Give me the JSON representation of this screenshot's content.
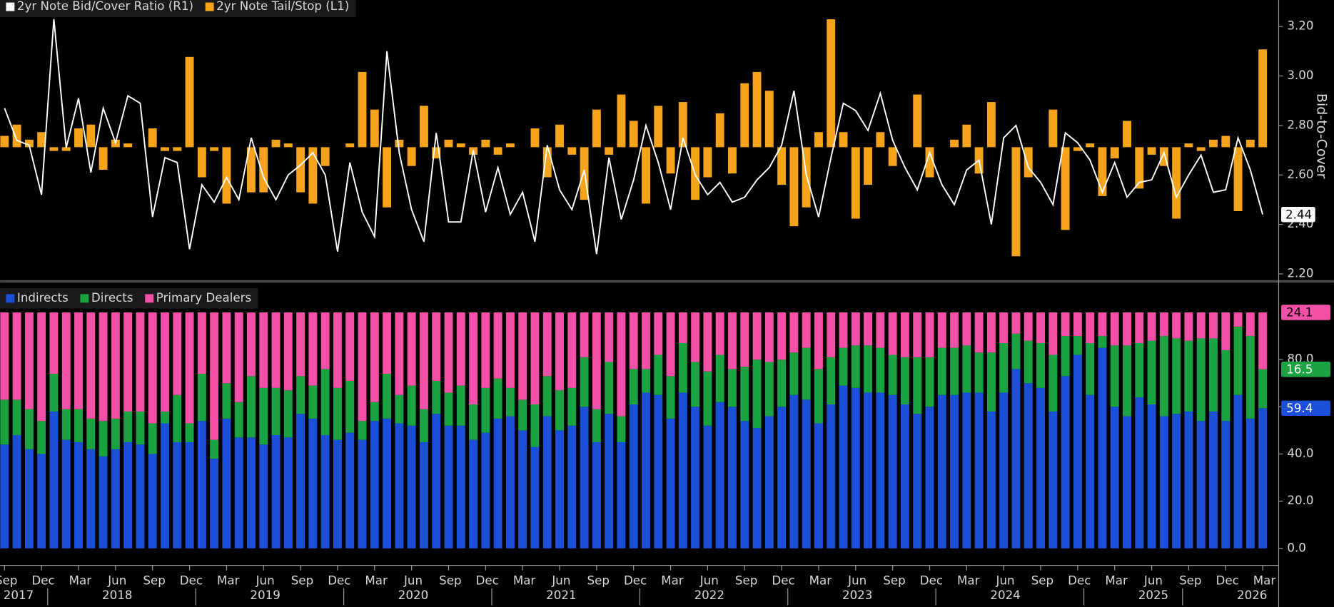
{
  "chart_data": [
    {
      "type": "combo",
      "series": [
        {
          "name": "2yr Note Bid/Cover Ratio (R1)",
          "color": "#ffffff",
          "type": "line",
          "axis": "y2",
          "values": [
            2.87,
            2.74,
            2.72,
            2.52,
            3.23,
            2.71,
            2.91,
            2.61,
            2.87,
            2.73,
            2.92,
            2.89,
            2.43,
            2.67,
            2.65,
            2.3,
            2.56,
            2.49,
            2.59,
            2.5,
            2.75,
            2.59,
            2.5,
            2.6,
            2.64,
            2.69,
            2.6,
            2.29,
            2.65,
            2.45,
            2.35,
            3.1,
            2.69,
            2.46,
            2.33,
            2.77,
            2.41,
            2.41,
            2.7,
            2.45,
            2.63,
            2.44,
            2.53,
            2.33,
            2.72,
            2.54,
            2.46,
            2.62,
            2.28,
            2.67,
            2.42,
            2.58,
            2.8,
            2.65,
            2.46,
            2.75,
            2.6,
            2.52,
            2.57,
            2.49,
            2.51,
            2.58,
            2.63,
            2.72,
            2.94,
            2.6,
            2.43,
            2.67,
            2.89,
            2.86,
            2.78,
            2.93,
            2.74,
            2.63,
            2.54,
            2.69,
            2.56,
            2.48,
            2.62,
            2.66,
            2.4,
            2.75,
            2.8,
            2.63,
            2.57,
            2.48,
            2.77,
            2.73,
            2.66,
            2.53,
            2.65,
            2.51,
            2.57,
            2.58,
            2.69,
            2.51,
            2.6,
            2.68,
            2.53,
            2.54,
            2.75,
            2.62,
            2.44
          ]
        },
        {
          "name": "2yr Note Tail/Stop (L1)",
          "color": "#f5a31a",
          "type": "bar",
          "values": [
            0.3,
            0.6,
            0.2,
            0.4,
            -0.1,
            -0.1,
            0.5,
            0.6,
            -0.6,
            0.2,
            0.1,
            0,
            0.5,
            -0.1,
            -0.1,
            2.4,
            -0.8,
            -0.1,
            -1.5,
            0,
            -1.2,
            -1.2,
            0.2,
            0.1,
            -1.2,
            -1.5,
            -0.5,
            0,
            0.1,
            2.0,
            1.0,
            -1.6,
            0.2,
            -0.5,
            1.1,
            -0.3,
            0.2,
            0.1,
            -0.2,
            0.2,
            -0.2,
            0.1,
            0.0,
            0.5,
            -0.8,
            0.6,
            -0.2,
            -1.4,
            1.0,
            -0.2,
            1.4,
            0.7,
            -1.5,
            1.1,
            -0.7,
            1.2,
            -1.4,
            -0.8,
            0.9,
            -0.7,
            1.7,
            2.0,
            1.5,
            -1.0,
            -2.1,
            -1.6,
            0.4,
            3.4,
            0.4,
            -1.9,
            -1.0,
            0.4,
            -0.5,
            0,
            1.4,
            -0.8,
            0,
            0.2,
            0.6,
            -0.7,
            1.2,
            0,
            -2.9,
            -0.8,
            0,
            1.0,
            -2.2,
            -0.1,
            0.1,
            -1.3,
            -0.3,
            0.7,
            -1.1,
            -0.2,
            -0.5,
            -1.9,
            0.1,
            -0.1,
            0.2,
            0.3,
            -1.7,
            0.2,
            2.6
          ]
        }
      ],
      "ylim": [
        -3.5,
        3.8
      ],
      "y2lim": [
        2.18,
        3.29
      ],
      "y2ticks": [
        {
          "value": 2.2,
          "label": "2.20"
        },
        {
          "value": 2.4,
          "label": "2.40"
        },
        {
          "value": 2.6,
          "label": "2.60"
        },
        {
          "value": 2.8,
          "label": "2.80"
        },
        {
          "value": 3.0,
          "label": "3.00"
        },
        {
          "value": 3.2,
          "label": "3.20"
        }
      ],
      "y2label": "Bid-to-Cover",
      "last_value_label": true
    },
    {
      "type": "stacked-bar",
      "categories": [
        "Sep",
        null,
        null,
        "Dec",
        null,
        null,
        "Mar",
        null,
        null,
        "Jun",
        null,
        null,
        "Sep",
        null,
        null,
        "Dec",
        null,
        null,
        "Mar",
        null,
        null,
        "Jun",
        null,
        null,
        "Sep",
        null,
        null,
        "Dec",
        null,
        null,
        "Mar",
        null,
        null,
        "Jun",
        null,
        null,
        "Sep",
        null,
        null,
        "Dec",
        null,
        null,
        "Mar",
        null,
        null,
        "Jun",
        null,
        null,
        "Sep",
        null,
        null,
        "Dec",
        null,
        null,
        "Mar",
        null,
        null,
        "Jun",
        null,
        null,
        "Sep",
        null,
        null,
        "Dec",
        null,
        null,
        "Mar",
        null,
        null,
        "Jun",
        null,
        null,
        "Sep",
        null,
        null,
        "Dec",
        null,
        null,
        "Mar",
        null,
        null,
        "Jun",
        null,
        null,
        "Sep",
        null,
        null,
        "Dec",
        null,
        null,
        "Mar",
        null,
        null,
        "Jun",
        null,
        null,
        "Sep",
        null,
        null,
        "Dec",
        null,
        null,
        "Mar"
      ],
      "years": [
        null,
        "2017",
        null,
        null,
        null,
        null,
        null,
        null,
        null,
        "2018",
        null,
        null,
        null,
        null,
        null,
        null,
        null,
        null,
        null,
        null,
        null,
        "2019",
        null,
        null,
        null,
        null,
        null,
        null,
        null,
        null,
        null,
        null,
        null,
        "2020",
        null,
        null,
        null,
        null,
        null,
        null,
        null,
        null,
        null,
        null,
        null,
        "2021",
        null,
        null,
        null,
        null,
        null,
        null,
        null,
        null,
        null,
        null,
        null,
        "2022",
        null,
        null,
        null,
        null,
        null,
        null,
        null,
        null,
        null,
        null,
        null,
        "2023",
        null,
        null,
        null,
        null,
        null,
        null,
        null,
        null,
        null,
        null,
        null,
        "2024",
        null,
        null,
        null,
        null,
        null,
        null,
        null,
        null,
        null,
        null,
        null,
        "2025",
        null,
        null,
        null,
        null,
        null,
        null,
        null,
        "2026",
        null
      ],
      "series": [
        {
          "name": "Indirects",
          "color": "#1c4fd8",
          "values": [
            44,
            48,
            42,
            40,
            58,
            46,
            45,
            42,
            39,
            42,
            45,
            44,
            40,
            53,
            45,
            45,
            54,
            38,
            55,
            47,
            47,
            44,
            48,
            47,
            57,
            55,
            48,
            46,
            49,
            46,
            54,
            55,
            53,
            52,
            45,
            57,
            52,
            52,
            46,
            49,
            55,
            56,
            50,
            43,
            56,
            50,
            52,
            60,
            45,
            57,
            45,
            61,
            66,
            65,
            55,
            66,
            60,
            52,
            62,
            60,
            54,
            51,
            56,
            60,
            65,
            63,
            53,
            61,
            69,
            68,
            66,
            66,
            65,
            61,
            57,
            60,
            65,
            65,
            66,
            66,
            58,
            66,
            76,
            70,
            68,
            58,
            73,
            82,
            65,
            85,
            60,
            56,
            64,
            61,
            56,
            57,
            58,
            54,
            58,
            54,
            65,
            55,
            59.4
          ]
        },
        {
          "name": "Directs",
          "color": "#1aa340",
          "values": [
            19,
            15,
            17,
            14,
            16,
            13,
            14,
            13,
            15,
            13,
            13,
            14,
            13,
            5,
            20,
            8,
            20,
            8,
            15,
            15,
            26,
            24,
            20,
            20,
            16,
            14,
            28,
            22,
            22,
            8,
            8,
            19,
            12,
            17,
            14,
            14,
            14,
            17,
            15,
            19,
            17,
            12,
            13,
            18,
            17,
            17,
            16,
            21,
            14,
            22,
            11,
            15,
            10,
            17,
            18,
            21,
            19,
            23,
            20,
            16,
            23,
            29,
            23,
            20,
            18,
            22,
            23,
            20,
            16,
            18,
            20,
            19,
            17,
            20,
            24,
            21,
            20,
            20,
            20,
            17,
            25,
            21,
            15,
            18,
            19,
            24,
            17,
            8,
            22,
            5,
            26,
            30,
            23,
            27,
            34,
            32,
            30,
            35,
            31,
            30,
            29,
            35,
            16.5
          ]
        },
        {
          "name": "Primary Dealers",
          "color": "#f450a8",
          "values": [
            37,
            37,
            41,
            46,
            26,
            41,
            41,
            45,
            46,
            45,
            42,
            42,
            47,
            42,
            35,
            47,
            26,
            54,
            30,
            38,
            27,
            32,
            32,
            33,
            27,
            31,
            24,
            32,
            29,
            46,
            38,
            26,
            35,
            31,
            41,
            29,
            34,
            31,
            39,
            32,
            28,
            32,
            37,
            39,
            27,
            33,
            32,
            19,
            41,
            21,
            44,
            24,
            24,
            18,
            27,
            13,
            21,
            25,
            18,
            24,
            23,
            20,
            21,
            20,
            17,
            15,
            24,
            19,
            15,
            14,
            14,
            15,
            18,
            19,
            19,
            19,
            15,
            15,
            14,
            17,
            17,
            13,
            9,
            12,
            13,
            18,
            10,
            10,
            13,
            10,
            14,
            14,
            13,
            12,
            10,
            11,
            12,
            11,
            11,
            16,
            6,
            10,
            24.1
          ]
        }
      ],
      "ylim": [
        0,
        100
      ],
      "yticks": [
        {
          "value": 0,
          "label": "0.0"
        },
        {
          "value": 20,
          "label": "20.0"
        },
        {
          "value": 40,
          "label": "40.0"
        },
        {
          "value": 60,
          "label": "60.0"
        },
        {
          "value": 80,
          "label": "80.0"
        }
      ],
      "last_value_label": true
    }
  ]
}
